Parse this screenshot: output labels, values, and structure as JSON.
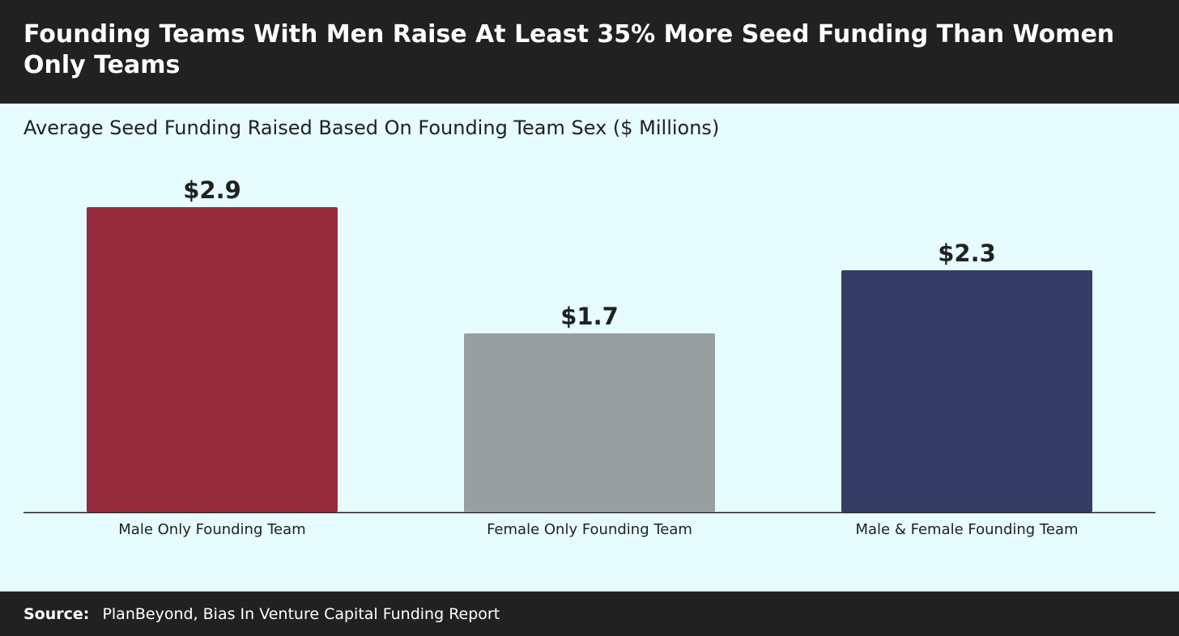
{
  "header": {
    "title": "Founding Teams With Men Raise At Least 35% More Seed Funding Than Women Only Teams"
  },
  "footer": {
    "source_label": "Source:",
    "source_text": "PlanBeyond, Bias In Venture Capital Funding Report"
  },
  "colors": {
    "header_bg": "#212121",
    "chart_bg": "#e6fcff",
    "male_only": "#962c3d",
    "female_only": "#999e9f",
    "mixed": "#353d64"
  },
  "chart_data": {
    "type": "bar",
    "title": "Founding Teams With Men Raise At Least 35% More Seed Funding Than Women Only Teams",
    "subtitle": "Average Seed Funding Raised Based On Founding Team Sex ($ Millions)",
    "categories": [
      "Male Only Founding Team",
      "Female Only Founding Team",
      "Male & Female Founding Team"
    ],
    "values": [
      2.9,
      1.7,
      2.3
    ],
    "value_labels": [
      "$2.9",
      "$1.7",
      "$2.3"
    ],
    "bar_colors": [
      "#962c3d",
      "#999e9f",
      "#353d64"
    ],
    "xlabel": "",
    "ylabel": "",
    "ylim": [
      0,
      3.3
    ],
    "grid": false,
    "legend": "none"
  }
}
